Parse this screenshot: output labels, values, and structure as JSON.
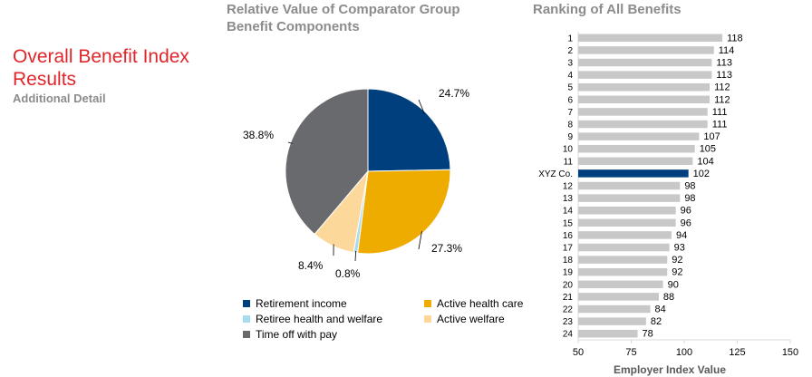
{
  "heading": {
    "title": "Overall Benefit Index Results",
    "subtitle": "Additional Detail"
  },
  "chart_data": [
    {
      "type": "pie",
      "title": "Relative Value of Comparator Group Benefit Components",
      "slices": [
        {
          "label": "Retirement income",
          "value": 24.7,
          "display": "24.7%",
          "color": "#003f7d"
        },
        {
          "label": "Active health care",
          "value": 27.3,
          "display": "27.3%",
          "color": "#eeab00"
        },
        {
          "label": "Retiree health and welfare",
          "value": 0.8,
          "display": "0.8%",
          "color": "#a9daf0"
        },
        {
          "label": "Active welfare",
          "value": 8.4,
          "display": "8.4%",
          "color": "#fcd99b"
        },
        {
          "label": "Time off with pay",
          "value": 38.8,
          "display": "38.8%",
          "color": "#696a6e"
        }
      ],
      "legend": {
        "placement": "bottom",
        "order": [
          "Retirement income",
          "Active health care",
          "Retiree health and welfare",
          "Active welfare",
          "Time off with pay"
        ]
      }
    },
    {
      "type": "bar",
      "orientation": "horizontal",
      "title": "Ranking of All Benefits",
      "xlabel": "Employer Index Value",
      "xlim": [
        50,
        150
      ],
      "xticks": [
        50,
        75,
        100,
        125,
        150
      ],
      "grid": false,
      "categories": [
        "1",
        "2",
        "3",
        "4",
        "5",
        "6",
        "7",
        "8",
        "9",
        "10",
        "11",
        "XYZ Co.",
        "12",
        "13",
        "14",
        "15",
        "16",
        "17",
        "18",
        "19",
        "20",
        "21",
        "22",
        "23",
        "24"
      ],
      "values": [
        118,
        114,
        113,
        113,
        112,
        112,
        111,
        111,
        107,
        105,
        104,
        102,
        98,
        98,
        96,
        96,
        94,
        93,
        92,
        92,
        90,
        88,
        84,
        82,
        78
      ],
      "highlight": "XYZ Co.",
      "bar_color": "#c8c8c8",
      "highlight_color": "#003f7d"
    }
  ]
}
